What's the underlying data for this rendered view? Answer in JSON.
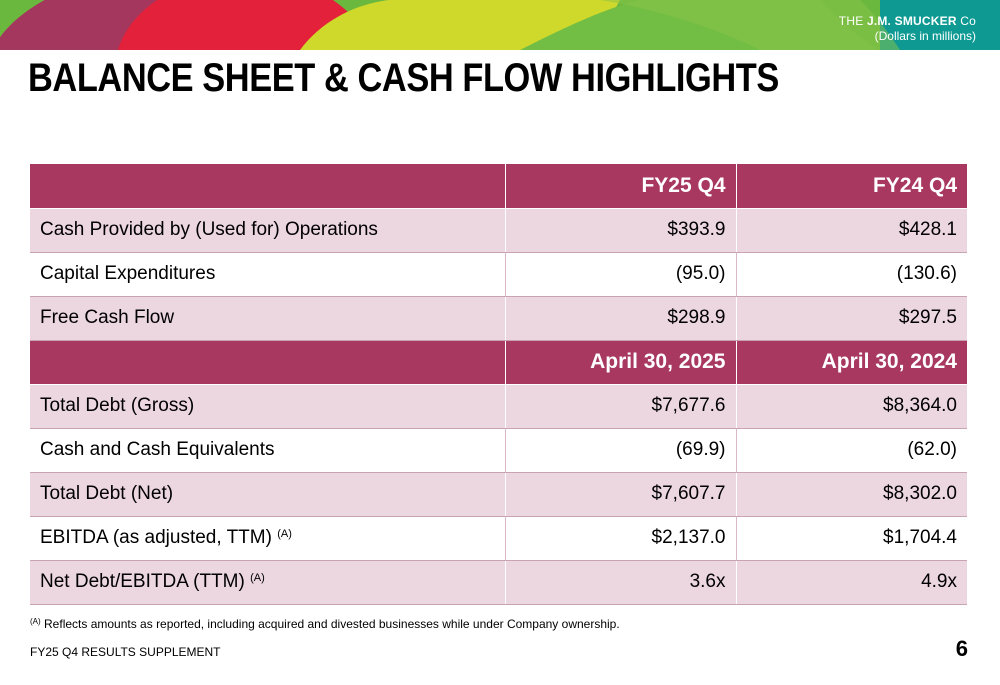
{
  "header": {
    "logo_prefix": "THE",
    "logo_name": "J.M. SMUCKER",
    "logo_suffix": "Co",
    "units": "(Dollars in millions)"
  },
  "title": "BALANCE SHEET & CASH FLOW HIGHLIGHTS",
  "table": {
    "header1": {
      "label": "",
      "col1": "FY25 Q4",
      "col2": "FY24 Q4"
    },
    "rows1": [
      {
        "label": "Cash Provided by (Used for) Operations",
        "col1": "$393.9",
        "col2": "$428.1",
        "note": ""
      },
      {
        "label": "Capital Expenditures",
        "col1": "(95.0)",
        "col2": "(130.6)",
        "note": ""
      },
      {
        "label": "Free Cash Flow",
        "col1": "$298.9",
        "col2": "$297.5",
        "note": ""
      }
    ],
    "header2": {
      "label": "",
      "col1": "April 30, 2025",
      "col2": "April 30, 2024"
    },
    "rows2": [
      {
        "label": "Total Debt (Gross)",
        "col1": "$7,677.6",
        "col2": "$8,364.0",
        "note": ""
      },
      {
        "label": "Cash and Cash Equivalents",
        "col1": "(69.9)",
        "col2": "(62.0)",
        "note": ""
      },
      {
        "label": "Total Debt (Net)",
        "col1": "$7,607.7",
        "col2": "$8,302.0",
        "note": ""
      },
      {
        "label": "EBITDA (as adjusted, TTM)",
        "col1": "$2,137.0",
        "col2": "$1,704.4",
        "note": "(A)"
      },
      {
        "label": "Net Debt/EBITDA (TTM)",
        "col1": "3.6x",
        "col2": "4.9x",
        "note": "(A)"
      }
    ]
  },
  "footnote": {
    "mark": "(A)",
    "text": "Reflects amounts as reported, including acquired and divested businesses while under Company ownership."
  },
  "footer": {
    "label": "FY25 Q4 RESULTS SUPPLEMENT",
    "page": "6"
  },
  "colors": {
    "header_bg": "#a8385f",
    "shade_bg": "#ecd6e0",
    "banner_teal": "#0e9a93",
    "banner_red": "#e3213a",
    "banner_lime": "#c8d62a",
    "banner_green": "#58b646"
  }
}
